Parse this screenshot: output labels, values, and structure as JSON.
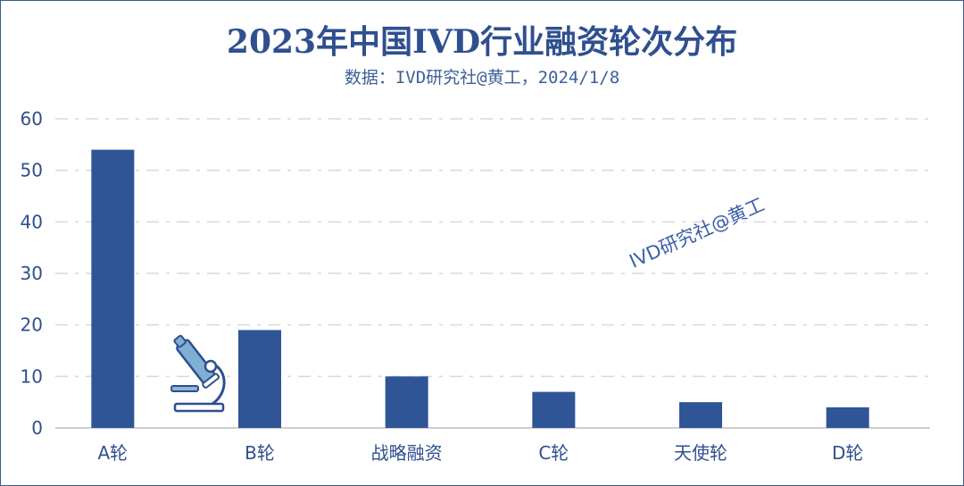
{
  "chart_data": {
    "type": "bar",
    "title": "2023年中国IVD行业融资轮次分布",
    "subtitle": "数据：IVD研究社@黄工，2024/1/8",
    "categories": [
      "A轮",
      "B轮",
      "战略融资",
      "C轮",
      "天使轮",
      "D轮"
    ],
    "values": [
      54,
      19,
      10,
      7,
      5,
      4
    ],
    "ylim": [
      0,
      60
    ],
    "yticks": [
      0,
      10,
      20,
      30,
      40,
      50,
      60
    ],
    "xlabel": "",
    "ylabel": "",
    "grid": true,
    "legend": "none",
    "bar_color": "#2f5597"
  },
  "watermark": "IVD研究社@黄工",
  "decoration": {
    "icon": "microscope-icon"
  },
  "colors": {
    "title": "#2f4f8f",
    "frame": "#3b5a95",
    "grid": "#d9d9d9",
    "axis": "#bfbfbf"
  }
}
